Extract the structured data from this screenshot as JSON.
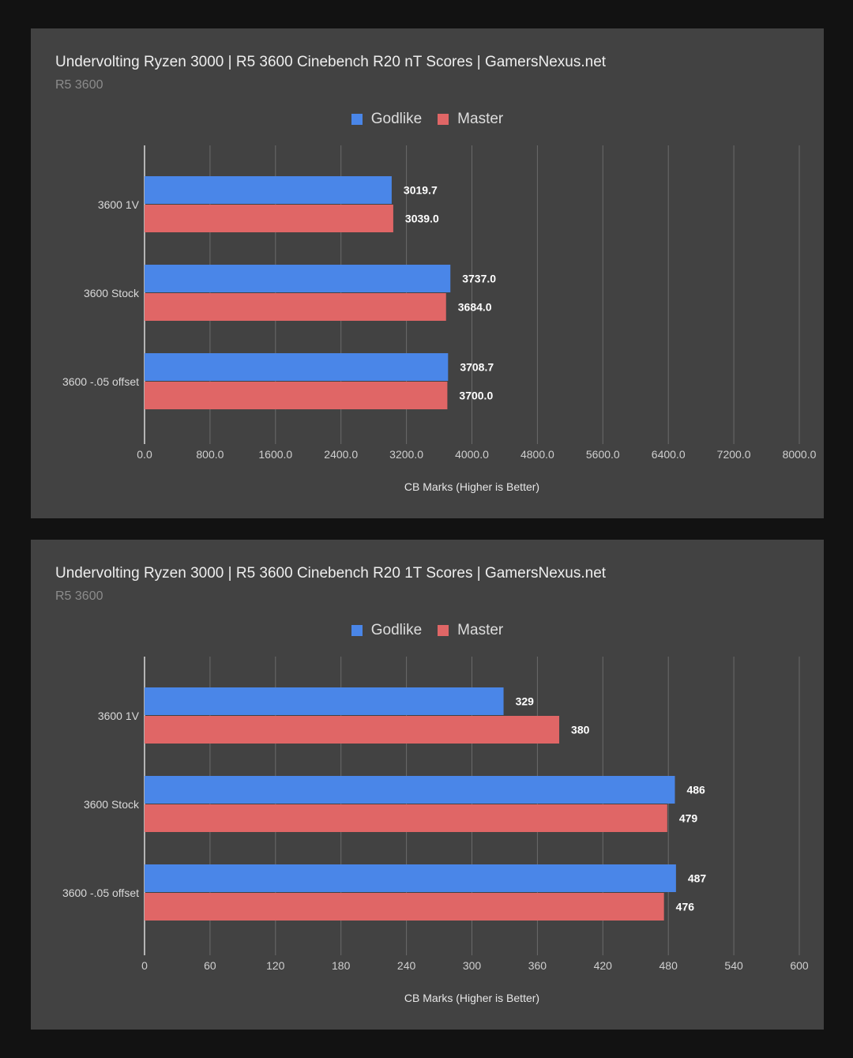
{
  "chart_data": [
    {
      "type": "bar",
      "orientation": "horizontal",
      "title": "Undervolting Ryzen 3000 | R5 3600 Cinebench R20 nT Scores | GamersNexus.net",
      "subtitle": "R5 3600",
      "categories": [
        "3600 1V",
        "3600 Stock",
        "3600 -.05 offset"
      ],
      "series": [
        {
          "name": "Godlike",
          "color": "#4a86e8",
          "values": [
            3019.7,
            3737.0,
            3708.7
          ],
          "labels": [
            "3019.7",
            "3737.0",
            "3708.7"
          ]
        },
        {
          "name": "Master",
          "color": "#e06666",
          "values": [
            3039.0,
            3684.0,
            3700.0
          ],
          "labels": [
            "3039.0",
            "3684.0",
            "3700.0"
          ]
        }
      ],
      "xlim": [
        0,
        8000
      ],
      "ticks": [
        0,
        800,
        1600,
        2400,
        3200,
        4000,
        4800,
        5600,
        6400,
        7200,
        8000
      ],
      "tick_labels": [
        "0.0",
        "800.0",
        "1600.0",
        "2400.0",
        "3200.0",
        "4000.0",
        "4800.0",
        "5600.0",
        "6400.0",
        "7200.0",
        "8000.0"
      ],
      "xlabel": "CB Marks (Higher is Better)",
      "ylabel": "",
      "legend_position": "top-center",
      "grid": true
    },
    {
      "type": "bar",
      "orientation": "horizontal",
      "title": "Undervolting Ryzen 3000 | R5 3600 Cinebench R20 1T Scores | GamersNexus.net",
      "subtitle": "R5 3600",
      "categories": [
        "3600 1V",
        "3600 Stock",
        "3600 -.05 offset"
      ],
      "series": [
        {
          "name": "Godlike",
          "color": "#4a86e8",
          "values": [
            329,
            486,
            487
          ],
          "labels": [
            "329",
            "486",
            "487"
          ]
        },
        {
          "name": "Master",
          "color": "#e06666",
          "values": [
            380,
            479,
            476
          ],
          "labels": [
            "380",
            "479",
            "476"
          ]
        }
      ],
      "xlim": [
        0,
        600
      ],
      "ticks": [
        0,
        60,
        120,
        180,
        240,
        300,
        360,
        420,
        480,
        540,
        600
      ],
      "tick_labels": [
        "0",
        "60",
        "120",
        "180",
        "240",
        "300",
        "360",
        "420",
        "480",
        "540",
        "600"
      ],
      "xlabel": "CB Marks (Higher is Better)",
      "ylabel": "",
      "legend_position": "top-center",
      "grid": true
    }
  ]
}
